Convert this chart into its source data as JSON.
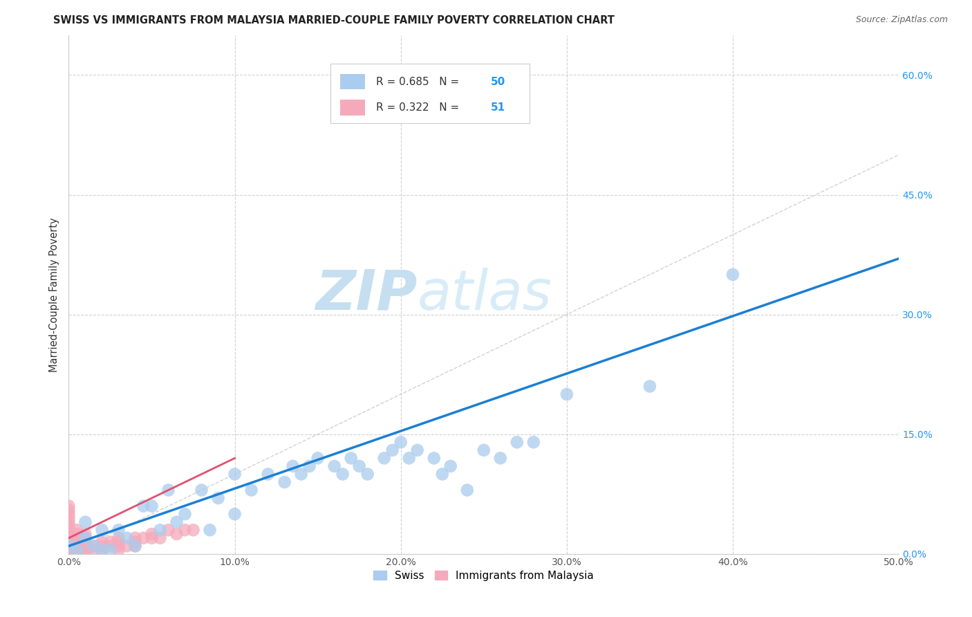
{
  "title": "SWISS VS IMMIGRANTS FROM MALAYSIA MARRIED-COUPLE FAMILY POVERTY CORRELATION CHART",
  "source": "Source: ZipAtlas.com",
  "ylabel": "Married-Couple Family Poverty",
  "xlim": [
    0,
    0.5
  ],
  "ylim": [
    0,
    0.65
  ],
  "xticks": [
    0.0,
    0.1,
    0.2,
    0.3,
    0.4,
    0.5
  ],
  "yticks": [
    0.0,
    0.15,
    0.3,
    0.45,
    0.6
  ],
  "watermark_zip": "ZIP",
  "watermark_atlas": "atlas",
  "background_color": "#ffffff",
  "grid_color": "#cccccc",
  "swiss_color": "#aaccee",
  "malaysia_color": "#f4aabb",
  "swiss_line_color": "#1a7fd4",
  "malaysia_line_color": "#e05070",
  "diag_color": "#cccccc",
  "swiss_R": 0.685,
  "swiss_N": 50,
  "malaysia_R": 0.322,
  "malaysia_N": 51,
  "legend_label_swiss": "Swiss",
  "legend_label_malaysia": "Immigrants from Malaysia",
  "swiss_x": [
    0.001,
    0.005,
    0.01,
    0.01,
    0.015,
    0.02,
    0.02,
    0.025,
    0.03,
    0.035,
    0.04,
    0.045,
    0.05,
    0.055,
    0.06,
    0.065,
    0.07,
    0.08,
    0.085,
    0.09,
    0.1,
    0.1,
    0.11,
    0.12,
    0.13,
    0.135,
    0.14,
    0.145,
    0.15,
    0.16,
    0.165,
    0.17,
    0.175,
    0.18,
    0.19,
    0.195,
    0.2,
    0.205,
    0.21,
    0.22,
    0.225,
    0.23,
    0.24,
    0.25,
    0.26,
    0.27,
    0.28,
    0.3,
    0.35,
    0.4
  ],
  "swiss_y": [
    0.01,
    0.005,
    0.02,
    0.04,
    0.01,
    0.03,
    0.005,
    0.005,
    0.03,
    0.02,
    0.01,
    0.06,
    0.06,
    0.03,
    0.08,
    0.04,
    0.05,
    0.08,
    0.03,
    0.07,
    0.1,
    0.05,
    0.08,
    0.1,
    0.09,
    0.11,
    0.1,
    0.11,
    0.12,
    0.11,
    0.1,
    0.12,
    0.11,
    0.1,
    0.12,
    0.13,
    0.14,
    0.12,
    0.13,
    0.12,
    0.1,
    0.11,
    0.08,
    0.13,
    0.12,
    0.14,
    0.14,
    0.2,
    0.21,
    0.35
  ],
  "malaysia_x": [
    0.0,
    0.0,
    0.0,
    0.0,
    0.0,
    0.0,
    0.0,
    0.0,
    0.0,
    0.0,
    0.0,
    0.0,
    0.0,
    0.0,
    0.0,
    0.005,
    0.005,
    0.005,
    0.005,
    0.005,
    0.005,
    0.005,
    0.01,
    0.01,
    0.01,
    0.01,
    0.01,
    0.01,
    0.015,
    0.015,
    0.02,
    0.02,
    0.02,
    0.025,
    0.025,
    0.03,
    0.03,
    0.03,
    0.03,
    0.035,
    0.04,
    0.04,
    0.04,
    0.045,
    0.05,
    0.05,
    0.055,
    0.06,
    0.065,
    0.07,
    0.075
  ],
  "malaysia_y": [
    0.0,
    0.005,
    0.01,
    0.01,
    0.015,
    0.02,
    0.02,
    0.025,
    0.03,
    0.035,
    0.04,
    0.045,
    0.05,
    0.055,
    0.06,
    0.0,
    0.005,
    0.01,
    0.015,
    0.02,
    0.025,
    0.03,
    0.0,
    0.005,
    0.01,
    0.015,
    0.02,
    0.025,
    0.005,
    0.01,
    0.005,
    0.01,
    0.015,
    0.01,
    0.015,
    0.005,
    0.01,
    0.015,
    0.02,
    0.01,
    0.01,
    0.015,
    0.02,
    0.02,
    0.02,
    0.025,
    0.02,
    0.03,
    0.025,
    0.03,
    0.03
  ],
  "swiss_trend_x": [
    0.0,
    0.5
  ],
  "swiss_trend_y": [
    0.01,
    0.37
  ],
  "malaysia_trend_x": [
    0.0,
    0.1
  ],
  "malaysia_trend_y": [
    0.02,
    0.12
  ]
}
